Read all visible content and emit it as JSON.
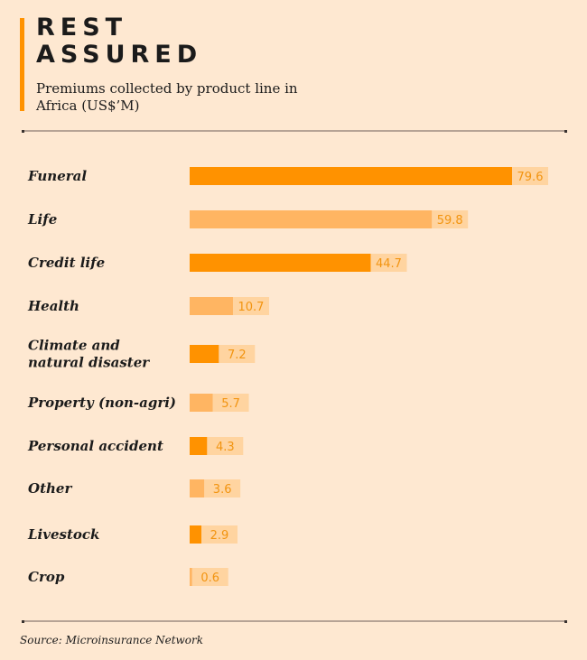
{
  "header": {
    "title_line1": "REST",
    "title_line2": "ASSURED",
    "subtitle": "Premiums collected by product line in Africa (US$’M)"
  },
  "footer": {
    "source": "Source: Microinsurance Network"
  },
  "colors": {
    "background": "#FEE8D1",
    "accent": "#FF9200",
    "bar_dark": "#FF9200",
    "bar_light": "#FFB562",
    "label_bg": "#FFD4A0",
    "label_text": "#F29410",
    "text": "#1b1b1b"
  },
  "chart_data": {
    "type": "bar",
    "orientation": "horizontal",
    "title": "REST ASSURED",
    "subtitle": "Premiums collected by product line in Africa (US$’M)",
    "xlabel": "",
    "ylabel": "",
    "grid": false,
    "legend": "none",
    "xlim": [
      0,
      80
    ],
    "categories": [
      "Funeral",
      "Life",
      "Credit life",
      "Health",
      "Climate and natural disaster",
      "Property (non-agri)",
      "Personal accident",
      "Other",
      "Livestock",
      "Crop"
    ],
    "category_lines": [
      [
        "Funeral"
      ],
      [
        "Life"
      ],
      [
        "Credit life"
      ],
      [
        "Health"
      ],
      [
        "Climate and",
        "natural disaster"
      ],
      [
        "Property (non-agri)"
      ],
      [
        "Personal accident"
      ],
      [
        "Other"
      ],
      [
        "Livestock"
      ],
      [
        "Crop"
      ]
    ],
    "values": [
      79.6,
      59.8,
      44.7,
      10.7,
      7.2,
      5.7,
      4.3,
      3.6,
      2.9,
      0.6
    ],
    "value_labels": [
      "79.6",
      "59.8",
      "44.7",
      "10.7",
      "7.2",
      "5.7",
      "4.3",
      "3.6",
      "2.9",
      "0.6"
    ],
    "bar_shades": [
      "dark",
      "light",
      "dark",
      "light",
      "dark",
      "light",
      "dark",
      "light",
      "dark",
      "light"
    ]
  }
}
